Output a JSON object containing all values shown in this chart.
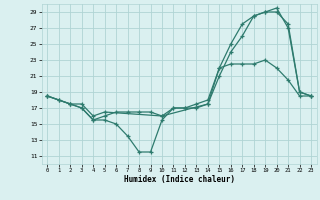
{
  "xlabel": "Humidex (Indice chaleur)",
  "bg_color": "#daf0f0",
  "grid_color": "#b0d4d4",
  "line_color": "#2e7b6e",
  "xlim": [
    -0.5,
    23.5
  ],
  "ylim": [
    10,
    30
  ],
  "xticks": [
    0,
    1,
    2,
    3,
    4,
    5,
    6,
    7,
    8,
    9,
    10,
    11,
    12,
    13,
    14,
    15,
    16,
    17,
    18,
    19,
    20,
    21,
    22,
    23
  ],
  "yticks": [
    11,
    13,
    15,
    17,
    19,
    21,
    23,
    25,
    27,
    29
  ],
  "line1_x": [
    0,
    1,
    2,
    3,
    4,
    5,
    10,
    14,
    15,
    16,
    17,
    18,
    19,
    20,
    21,
    22,
    23
  ],
  "line1_y": [
    18.5,
    18.0,
    17.5,
    17.5,
    16.0,
    16.5,
    16.0,
    17.5,
    21.0,
    24.0,
    26.0,
    28.5,
    29.0,
    29.0,
    27.5,
    19.0,
    18.5
  ],
  "line2_x": [
    0,
    1,
    2,
    3,
    4,
    5,
    6,
    7,
    8,
    9,
    10,
    11,
    12,
    13,
    14,
    15,
    16,
    17,
    18,
    19,
    20,
    21,
    22,
    23
  ],
  "line2_y": [
    18.5,
    18.0,
    17.5,
    17.0,
    15.5,
    16.0,
    16.5,
    16.5,
    16.5,
    16.5,
    16.0,
    17.0,
    17.0,
    17.5,
    18.0,
    22.0,
    22.5,
    22.5,
    22.5,
    23.0,
    22.0,
    20.5,
    18.5,
    18.5
  ],
  "line3_x": [
    0,
    2,
    3,
    4,
    5,
    6,
    7,
    8,
    9,
    10,
    11,
    12,
    13,
    14,
    15,
    16,
    17,
    18,
    19,
    20,
    21,
    22,
    23
  ],
  "line3_y": [
    18.5,
    17.5,
    17.0,
    15.5,
    15.5,
    15.0,
    13.5,
    11.5,
    11.5,
    15.5,
    17.0,
    17.0,
    17.0,
    17.5,
    22.0,
    25.0,
    27.5,
    28.5,
    29.0,
    29.5,
    27.0,
    19.0,
    18.5
  ]
}
